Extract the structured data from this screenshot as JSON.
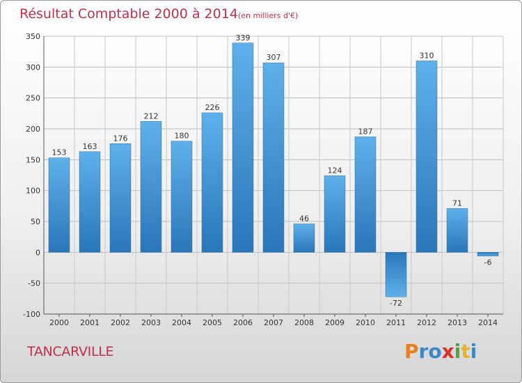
{
  "chart_data": {
    "type": "bar",
    "title": "Résultat Comptable 2000 à 2014",
    "subtitle": "(en milliers d'€)",
    "categories": [
      "2000",
      "2001",
      "2002",
      "2003",
      "2004",
      "2005",
      "2006",
      "2007",
      "2008",
      "2009",
      "2010",
      "2011",
      "2012",
      "2013",
      "2014"
    ],
    "values": [
      153,
      163,
      176,
      212,
      180,
      226,
      339,
      307,
      46,
      124,
      187,
      -72,
      310,
      71,
      -6
    ],
    "value_labels": [
      "153",
      "163",
      "176",
      "212",
      "180",
      "226",
      "339",
      "307",
      "46",
      "124",
      "187",
      "-72",
      "310",
      "71",
      "-6"
    ],
    "ylim": [
      -100,
      350
    ],
    "yticks": [
      -100,
      -50,
      0,
      50,
      100,
      150,
      200,
      250,
      300,
      350
    ],
    "ytick_labels": [
      "-100",
      "-50",
      "0",
      "50",
      "100",
      "150",
      "200",
      "250",
      "300",
      "350"
    ],
    "grid": true,
    "xlabel": "",
    "ylabel": "",
    "bar_color": "#3d8ed4"
  },
  "footer": {
    "commune": "TANCARVILLE",
    "logo_letters": [
      "P",
      "r",
      "o",
      "x",
      "i",
      "t",
      "i"
    ],
    "logo_colors": [
      "#e87d1e",
      "#3d86c8",
      "#3d86c8",
      "#d9312b",
      "#4aa83a",
      "#e8b520",
      "#3d86c8"
    ]
  }
}
